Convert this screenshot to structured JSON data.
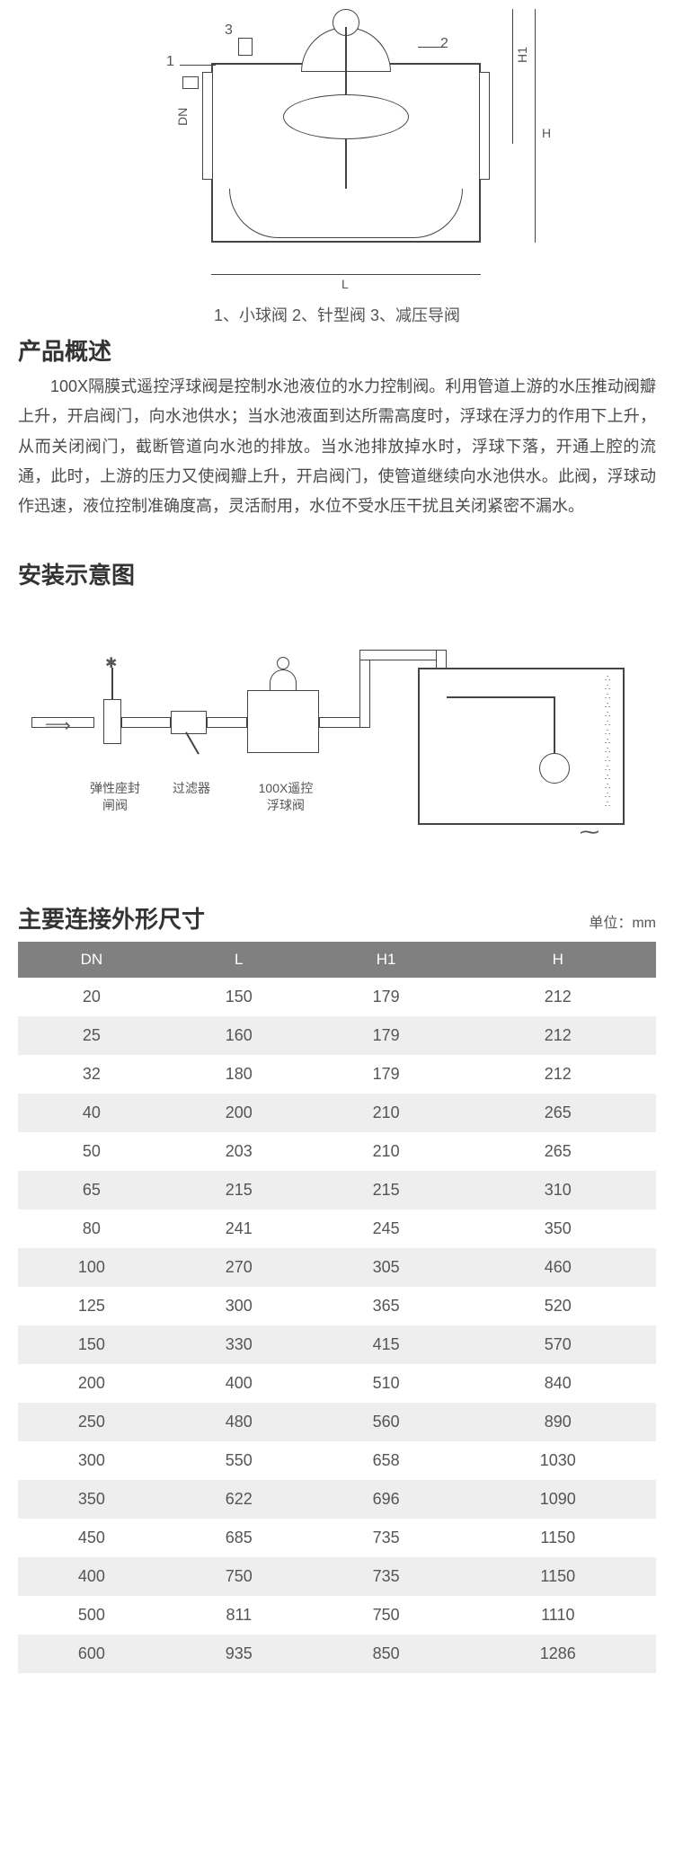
{
  "top_diagram": {
    "callouts": [
      "1",
      "2",
      "3"
    ],
    "dim_labels": [
      "DN",
      "L",
      "H1",
      "H"
    ],
    "caption": "1、小球阀 2、针型阀 3、减压导阀"
  },
  "overview": {
    "heading": "产品概述",
    "body": "100X隔膜式遥控浮球阀是控制水池液位的水力控制阀。利用管道上游的水压推动阀瓣上升，开启阀门，向水池供水；当水池液面到达所需高度时，浮球在浮力的作用下上升，从而关闭阀门，截断管道向水池的排放。当水池排放掉水时，浮球下落，开通上腔的流通，此时，上游的压力又使阀瓣上升，开启阀门，使管道继续向水池供水。此阀，浮球动作迅速，液位控制准确度高，灵活耐用，水位不受水压干扰且关闭紧密不漏水。"
  },
  "install": {
    "heading": "安装示意图",
    "labels": {
      "gate_valve": "弹性座封\n闸阀",
      "filter": "过滤器",
      "float_valve": "100X遥控\n浮球阀"
    }
  },
  "dimensions": {
    "heading": "主要连接外形尺寸",
    "unit": "单位：mm",
    "columns": [
      "DN",
      "L",
      "H1",
      "H"
    ],
    "rows": [
      [
        "20",
        "150",
        "179",
        "212"
      ],
      [
        "25",
        "160",
        "179",
        "212"
      ],
      [
        "32",
        "180",
        "179",
        "212"
      ],
      [
        "40",
        "200",
        "210",
        "265"
      ],
      [
        "50",
        "203",
        "210",
        "265"
      ],
      [
        "65",
        "215",
        "215",
        "310"
      ],
      [
        "80",
        "241",
        "245",
        "350"
      ],
      [
        "100",
        "270",
        "305",
        "460"
      ],
      [
        "125",
        "300",
        "365",
        "520"
      ],
      [
        "150",
        "330",
        "415",
        "570"
      ],
      [
        "200",
        "400",
        "510",
        "840"
      ],
      [
        "250",
        "480",
        "560",
        "890"
      ],
      [
        "300",
        "550",
        "658",
        "1030"
      ],
      [
        "350",
        "622",
        "696",
        "1090"
      ],
      [
        "450",
        "685",
        "735",
        "1150"
      ],
      [
        "400",
        "750",
        "735",
        "1150"
      ],
      [
        "500",
        "811",
        "750",
        "1110"
      ],
      [
        "600",
        "935",
        "850",
        "1286"
      ]
    ],
    "header_bg": "#808080",
    "header_color": "#ffffff",
    "row_alt_bg": "#eeeeee",
    "text_color": "#555555"
  }
}
